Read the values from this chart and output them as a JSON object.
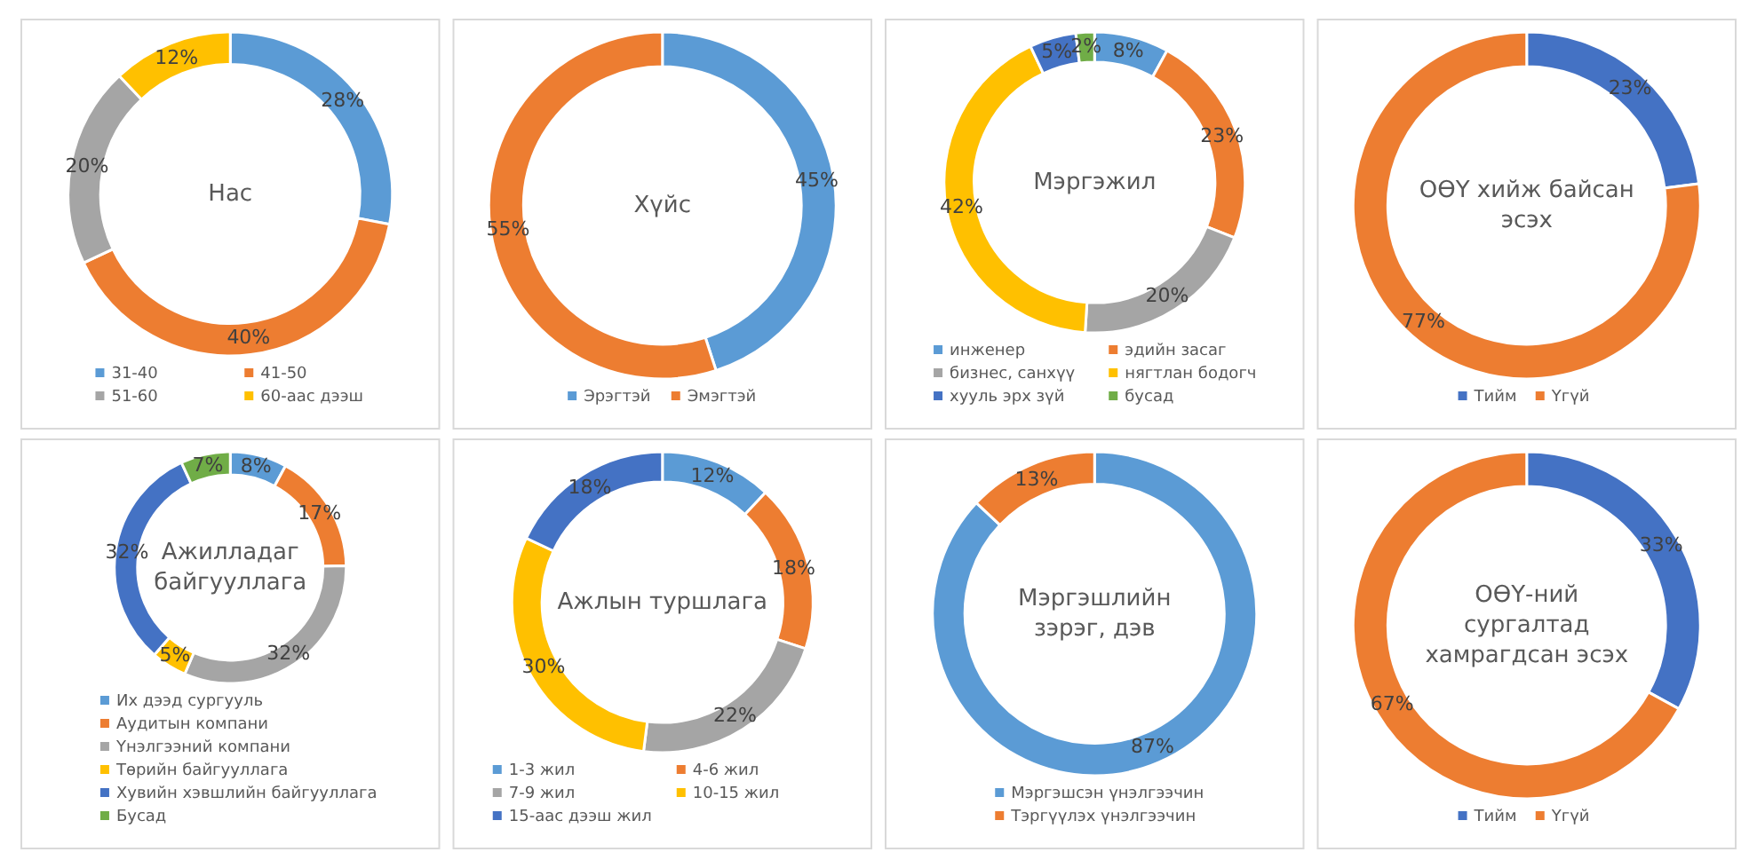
{
  "chart_data": [
    {
      "type": "donut",
      "title": "Нас",
      "categories": [
        "31-40",
        "41-50",
        "51-60",
        "60-аас дээш"
      ],
      "values": [
        28,
        40,
        20,
        12
      ],
      "value_labels": [
        "28%",
        "40%",
        "20%",
        "12%"
      ],
      "colors": [
        "#5b9bd5",
        "#ed7d31",
        "#a5a5a5",
        "#ffc000"
      ],
      "legend": "bottom"
    },
    {
      "type": "donut",
      "title": "Хүйс",
      "categories": [
        "Эрэгтэй",
        "Эмэгтэй"
      ],
      "values": [
        45,
        55
      ],
      "value_labels": [
        "45%",
        "55%"
      ],
      "colors": [
        "#5b9bd5",
        "#ed7d31"
      ],
      "legend": "bottom"
    },
    {
      "type": "donut",
      "title": "Мэргэжил",
      "categories": [
        "инженер",
        "эдийн засаг",
        "бизнес, санхүү",
        "нягтлан бодогч",
        "хууль эрх зүй",
        "бусад"
      ],
      "values": [
        8,
        23,
        20,
        42,
        5,
        2
      ],
      "value_labels": [
        "8%",
        "23%",
        "20%",
        "42%",
        "5%",
        "2%"
      ],
      "colors": [
        "#5b9bd5",
        "#ed7d31",
        "#a5a5a5",
        "#ffc000",
        "#4472c4",
        "#70ad47"
      ],
      "legend": "bottom"
    },
    {
      "type": "donut",
      "title": "ОӨҮ хийж байсан эсэх",
      "categories": [
        "Тийм",
        "Үгүй"
      ],
      "values": [
        23,
        77
      ],
      "value_labels": [
        "23%",
        "77%"
      ],
      "colors": [
        "#4472c4",
        "#ed7d31"
      ],
      "legend": "bottom"
    },
    {
      "type": "donut",
      "title": "Ажилладаг байгууллага",
      "categories": [
        "Их дээд сургууль",
        "Аудитын компани",
        "Үнэлгээний компани",
        "Төрийн байгууллага",
        "Хувийн хэвшлийн байгууллага",
        "Бусад"
      ],
      "values": [
        8,
        17,
        32,
        5,
        32,
        7
      ],
      "value_labels": [
        "8%",
        "17%",
        "32%",
        "5%",
        "32%",
        "7%"
      ],
      "colors": [
        "#5b9bd5",
        "#ed7d31",
        "#a5a5a5",
        "#ffc000",
        "#4472c4",
        "#70ad47"
      ],
      "legend": "bottom"
    },
    {
      "type": "donut",
      "title": "Ажлын туршлага",
      "categories": [
        "1-3 жил",
        "4-6 жил",
        "7-9 жил",
        "10-15 жил",
        "15-аас дээш жил"
      ],
      "values": [
        12,
        18,
        22,
        30,
        18
      ],
      "value_labels": [
        "12%",
        "18%",
        "22%",
        "30%",
        "18%"
      ],
      "colors": [
        "#5b9bd5",
        "#ed7d31",
        "#a5a5a5",
        "#ffc000",
        "#4472c4"
      ],
      "legend": "bottom"
    },
    {
      "type": "donut",
      "title": "Мэргэшлийн зэрэг, дэв",
      "categories": [
        "Мэргэшсэн үнэлгээчин",
        "Тэргүүлэх үнэлгээчин"
      ],
      "values": [
        87,
        13
      ],
      "value_labels": [
        "87%",
        "13%"
      ],
      "colors": [
        "#5b9bd5",
        "#ed7d31"
      ],
      "legend": "bottom"
    },
    {
      "type": "donut",
      "title": "ОӨҮ-ний сургалтад хамрагдсан эсэх",
      "categories": [
        "Тийм",
        "Үгүй"
      ],
      "values": [
        33,
        67
      ],
      "value_labels": [
        "33%",
        "67%"
      ],
      "colors": [
        "#4472c4",
        "#ed7d31"
      ],
      "legend": "bottom"
    }
  ]
}
